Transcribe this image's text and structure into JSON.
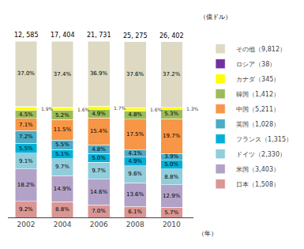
{
  "chart_data": {
    "type": "bar",
    "stacked": true,
    "categories": [
      "2002",
      "2004",
      "2006",
      "2008",
      "2010"
    ],
    "series": [
      {
        "name": "日本（1,508）",
        "color": "#da9694",
        "values": [
          9.2,
          8.8,
          7.0,
          6.1,
          5.7
        ],
        "value_labels": [
          "9.2%",
          "8.8%",
          "7.0%",
          "6.1%",
          "5.7%"
        ]
      },
      {
        "name": "米国（3,403）",
        "color": "#b3a2c7",
        "values": [
          18.2,
          14.9,
          14.6,
          13.6,
          12.9
        ],
        "value_labels": [
          "18.2%",
          "14.9%",
          "14.6%",
          "13.6%",
          "12.9%"
        ]
      },
      {
        "name": "ドイツ（2,330）",
        "color": "#92cddc",
        "values": [
          9.1,
          9.7,
          9.7,
          9.6,
          8.8
        ],
        "value_labels": [
          "9.1%",
          "9.7%",
          "9.7%",
          "9.6%",
          "8.8%"
        ]
      },
      {
        "name": "フランス（1,315）",
        "color": "#00b0d7",
        "values": [
          5.5,
          5.1,
          5.0,
          4.9,
          5.0
        ],
        "value_labels": [
          "5.5%",
          "5.1%",
          "5.0%",
          "4.9%",
          "5.0%"
        ]
      },
      {
        "name": "英国（1,028）",
        "color": "#4bacc6",
        "values": [
          7.2,
          5.5,
          4.8,
          4.1,
          3.9
        ],
        "value_labels": [
          "7.2%",
          "5.5%",
          "4.8%",
          "4.1%",
          "3.9%"
        ]
      },
      {
        "name": "中国（5,211）",
        "color": "#f79646",
        "values": [
          7.1,
          11.5,
          15.4,
          17.5,
          19.7
        ],
        "value_labels": [
          "7.1%",
          "11.5%",
          "15.4%",
          "17.5%",
          "19.7%"
        ]
      },
      {
        "name": "韓国（1,412）",
        "color": "#9bbb59",
        "values": [
          4.5,
          5.2,
          4.9,
          4.8,
          5.3
        ],
        "value_labels": [
          "4.5%",
          "5.2%",
          "4.9%",
          "4.8%",
          "5.3%"
        ]
      },
      {
        "name": "カナダ（345）",
        "color": "#ffff00",
        "values": [
          1.9,
          1.6,
          1.7,
          1.6,
          1.3
        ],
        "value_labels": [
          "1.9%",
          "1.6%",
          "1.7%",
          "1.6%",
          "1.3%"
        ]
      },
      {
        "name": "ロシア（38）",
        "color": "#7030a0",
        "values": [
          0.3,
          0.3,
          0.1,
          0.1,
          0.1
        ]
      },
      {
        "name": "その他（9,812）",
        "color": "#ddd9c3",
        "values": [
          37.0,
          37.4,
          36.9,
          37.6,
          37.2
        ],
        "value_labels": [
          "37.0%",
          "37.4%",
          "36.9%",
          "37.6%",
          "37.2%"
        ]
      }
    ],
    "totals": [
      "12, 585",
      "17, 404",
      "21, 731",
      "25, 275",
      "26, 402"
    ],
    "xlabel": "（年）",
    "ylabel": "（億ドル）",
    "ylim": [
      0,
      110
    ],
    "yticks": [],
    "tick_labels": "x",
    "grid": false,
    "legend": "right",
    "data_labels": true
  }
}
